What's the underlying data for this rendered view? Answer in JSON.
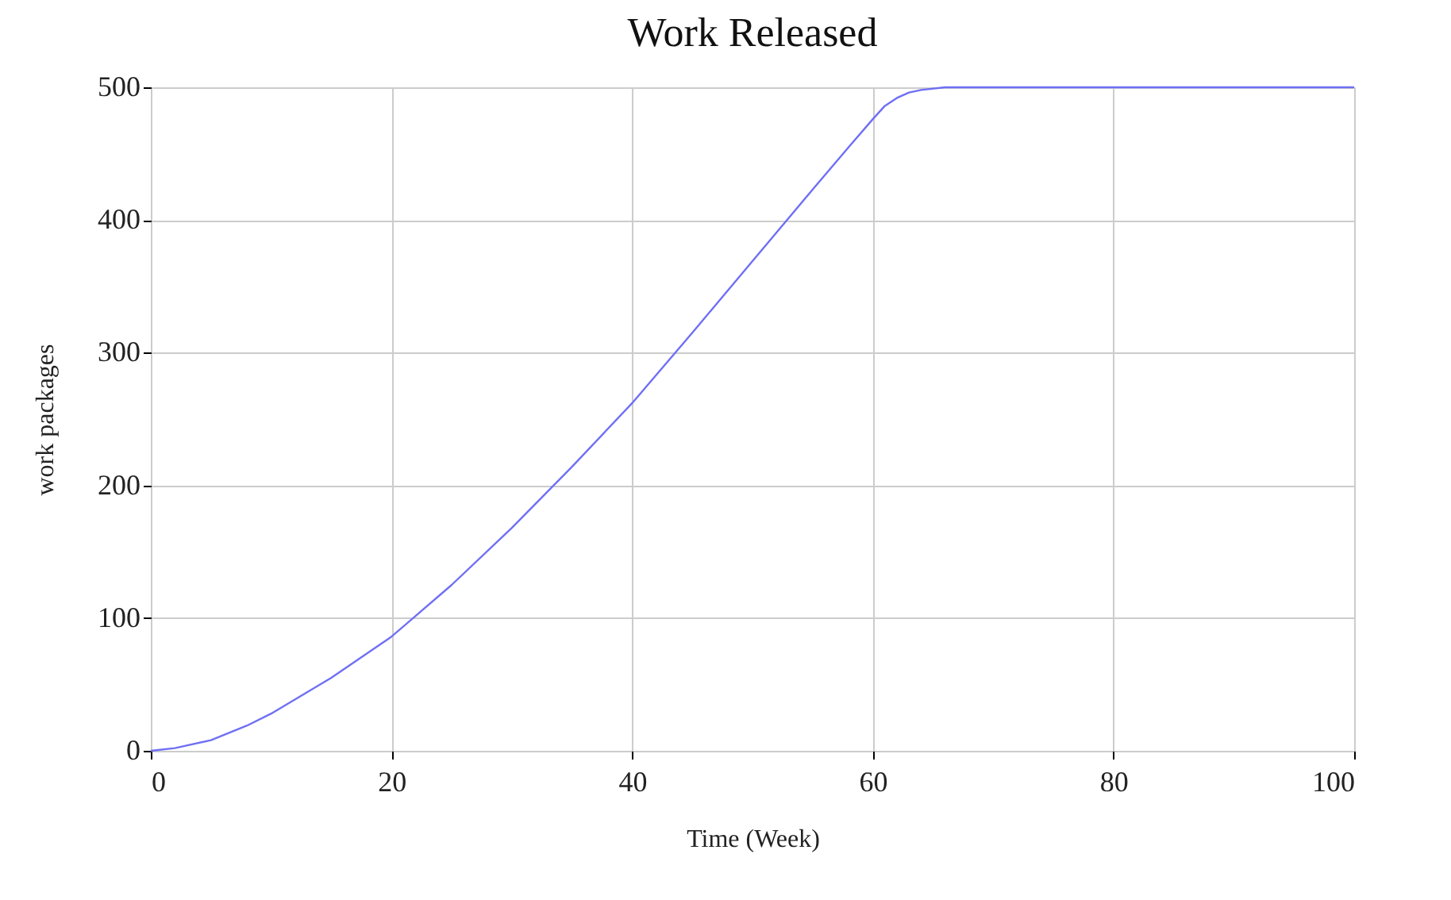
{
  "chart_data": {
    "type": "line",
    "title": "Work Released",
    "xlabel": "Time (Week)",
    "ylabel": "work packages",
    "x": [
      0,
      2,
      5,
      8,
      10,
      15,
      20,
      25,
      30,
      35,
      40,
      45,
      50,
      55,
      58,
      60,
      61,
      62,
      63,
      64,
      66,
      70,
      80,
      90,
      100
    ],
    "series": [
      {
        "color": "#6f6ff5",
        "values": [
          0,
          2,
          8,
          19,
          28,
          55,
          86,
          125,
          168,
          214,
          262,
          315,
          369,
          423,
          455,
          476,
          486,
          492,
          496,
          498,
          500,
          500,
          500,
          500,
          500
        ]
      }
    ],
    "xlim": [
      0,
      100
    ],
    "ylim": [
      0,
      500
    ],
    "xticks": [
      0,
      20,
      40,
      60,
      80,
      100
    ],
    "yticks": [
      0,
      100,
      200,
      300,
      400,
      500
    ],
    "grid": true,
    "legend": false,
    "marker": "none",
    "line_style": "solid"
  }
}
